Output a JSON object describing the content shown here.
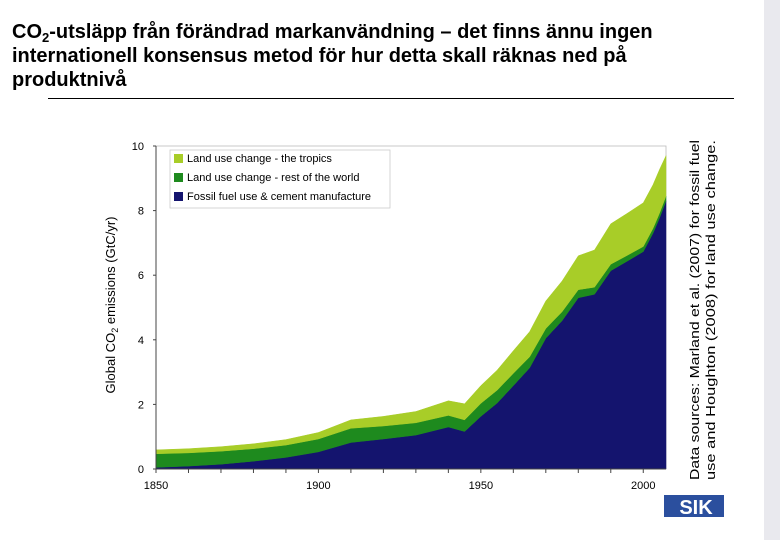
{
  "slide": {
    "title_prefix": "CO",
    "title_subscript": "2",
    "title_rest": "-utsläpp från förändrad markanvändning – det finns ännu ingen internationell konsensus metod för hur detta skall räknas ned på produktnivå",
    "source_line1": "Data sources: Marland et al. (2007) for fossil fuel",
    "source_line2": "use and Houghton (2008) for land use change.",
    "logo_text": "SIK"
  },
  "colors": {
    "fossil": "#14146e",
    "rest_of_world": "#1e8a1e",
    "tropics": "#a8cd28",
    "logo": "#2b4f9e"
  },
  "chart_data": {
    "type": "area",
    "stacked": true,
    "ylabel_prefix": "Global CO",
    "ylabel_sub": "2",
    "ylabel_suffix": " emissions (GtC/yr)",
    "xlabel": "",
    "xlim": [
      1850,
      2007
    ],
    "ylim": [
      0,
      10
    ],
    "x_ticks": [
      1850,
      1900,
      1950,
      2000
    ],
    "y_ticks": [
      0,
      2,
      4,
      6,
      8,
      10
    ],
    "legend_position": "top-left",
    "x": [
      1850,
      1860,
      1870,
      1880,
      1890,
      1900,
      1910,
      1920,
      1930,
      1940,
      1945,
      1950,
      1955,
      1960,
      1965,
      1970,
      1975,
      1980,
      1985,
      1990,
      1995,
      2000,
      2003,
      2005,
      2007
    ],
    "series": [
      {
        "name": "Fossil fuel use & cement manufacture",
        "color_key": "fossil",
        "values": [
          0.05,
          0.09,
          0.15,
          0.24,
          0.36,
          0.53,
          0.82,
          0.93,
          1.05,
          1.3,
          1.16,
          1.63,
          2.04,
          2.58,
          3.13,
          4.05,
          4.59,
          5.3,
          5.41,
          6.14,
          6.43,
          6.73,
          7.3,
          7.77,
          8.3
        ]
      },
      {
        "name": "Land use change - rest of the world",
        "color_key": "rest_of_world",
        "values": [
          0.42,
          0.41,
          0.4,
          0.39,
          0.38,
          0.4,
          0.44,
          0.4,
          0.38,
          0.36,
          0.36,
          0.4,
          0.4,
          0.38,
          0.34,
          0.3,
          0.28,
          0.25,
          0.22,
          0.2,
          0.18,
          0.16,
          0.15,
          0.15,
          0.15
        ]
      },
      {
        "name": "Land use change - the tropics",
        "color_key": "tropics",
        "values": [
          0.12,
          0.13,
          0.14,
          0.15,
          0.17,
          0.2,
          0.26,
          0.3,
          0.35,
          0.45,
          0.5,
          0.55,
          0.62,
          0.7,
          0.78,
          0.85,
          0.95,
          1.05,
          1.15,
          1.25,
          1.3,
          1.35,
          1.35,
          1.35,
          1.25
        ]
      }
    ]
  }
}
